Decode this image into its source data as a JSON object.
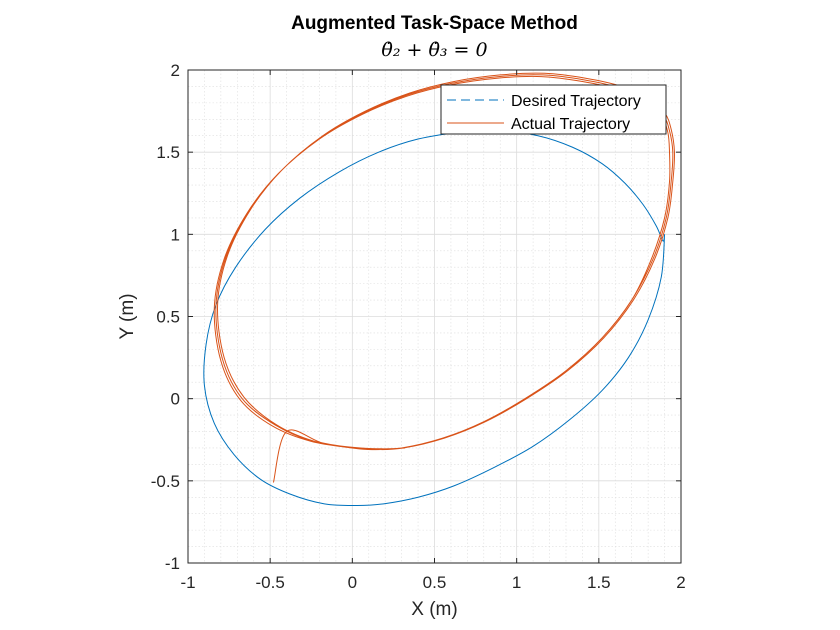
{
  "chart_data": {
    "type": "line",
    "title": "Augmented Task-Space Method",
    "subtitle": "θ̇₂ + θ̇₃ = 0",
    "xlabel": "X (m)",
    "ylabel": "Y (m)",
    "xlim": [
      -1,
      2
    ],
    "ylim": [
      -1,
      2
    ],
    "xticks": [
      -1,
      -0.5,
      0,
      0.5,
      1,
      1.5,
      2
    ],
    "yticks": [
      -1,
      -0.5,
      0,
      0.5,
      1,
      1.5,
      2
    ],
    "xtick_labels": [
      "-1",
      "-0.5",
      "0",
      "0.5",
      "1",
      "1.5",
      "2"
    ],
    "ytick_labels": [
      "-1",
      "-0.5",
      "0",
      "0.5",
      "1",
      "1.5",
      "2"
    ],
    "grid": true,
    "minor_grid": true,
    "legend_position": "top-right",
    "series": [
      {
        "name": "Desired Trajectory",
        "style": "dashed",
        "color": "#0072BD",
        "x": [
          1.9,
          1.88,
          1.8,
          1.68,
          1.52,
          1.32,
          1.1,
          0.86,
          0.62,
          0.4,
          0.19,
          0.03,
          -0.17,
          -0.38,
          -0.56,
          -0.72,
          -0.84,
          -0.9,
          -0.89,
          -0.83,
          -0.71,
          -0.53,
          -0.32,
          -0.08,
          0.16,
          0.4,
          0.65,
          0.9,
          1.13,
          1.34,
          1.52,
          1.66,
          1.77,
          1.85,
          1.89,
          1.9
        ],
        "y": [
          1.0,
          0.74,
          0.48,
          0.25,
          0.05,
          -0.13,
          -0.29,
          -0.42,
          -0.53,
          -0.6,
          -0.64,
          -0.65,
          -0.64,
          -0.58,
          -0.49,
          -0.34,
          -0.15,
          0.08,
          0.33,
          0.57,
          0.8,
          1.03,
          1.22,
          1.38,
          1.5,
          1.58,
          1.62,
          1.63,
          1.6,
          1.53,
          1.43,
          1.31,
          1.18,
          1.05,
          0.96,
          1.0
        ]
      },
      {
        "name": "Actual Trajectory",
        "style": "solid",
        "color": "#D95319",
        "x": [
          -0.48,
          -0.4,
          -0.18,
          0.05,
          0.3,
          0.55,
          0.8,
          1.05,
          1.3,
          1.52,
          1.7,
          1.82,
          1.9,
          1.93,
          1.93,
          1.92,
          1.88,
          1.78,
          1.62,
          1.4,
          1.15,
          0.88,
          0.6,
          0.33,
          0.06,
          -0.2,
          -0.45,
          -0.64,
          -0.78,
          -0.84,
          -0.8,
          -0.68,
          -0.48,
          -0.25,
          0.0,
          0.12,
          0.3,
          0.55,
          0.8,
          1.05,
          1.3,
          1.52,
          1.7,
          1.83,
          1.91,
          1.94,
          1.95,
          1.93,
          1.89,
          1.79,
          1.63,
          1.41,
          1.16,
          0.89,
          0.61,
          0.34,
          0.07,
          -0.19,
          -0.44,
          -0.63,
          -0.77,
          -0.83,
          -0.79,
          -0.67,
          -0.47,
          -0.24,
          0.0,
          0.13,
          0.31,
          0.56,
          0.81,
          1.06,
          1.31,
          1.53,
          1.71,
          1.84,
          1.92,
          1.95,
          1.96,
          1.94,
          1.9,
          1.8,
          1.64,
          1.42,
          1.17,
          0.9,
          0.62,
          0.35,
          0.08,
          -0.18,
          -0.43,
          -0.62,
          -0.76,
          -0.82,
          -0.78,
          -0.66,
          -0.46,
          -0.23,
          0.0,
          0.14,
          0.32
        ],
        "y": [
          -0.51,
          -0.2,
          -0.27,
          -0.3,
          -0.3,
          -0.24,
          -0.14,
          0.0,
          0.17,
          0.37,
          0.6,
          0.85,
          1.1,
          1.32,
          1.5,
          1.62,
          1.72,
          1.81,
          1.88,
          1.93,
          1.96,
          1.95,
          1.91,
          1.84,
          1.73,
          1.58,
          1.37,
          1.13,
          0.85,
          0.55,
          0.23,
          -0.01,
          -0.17,
          -0.26,
          -0.3,
          -0.31,
          -0.3,
          -0.24,
          -0.14,
          0.0,
          0.17,
          0.37,
          0.6,
          0.85,
          1.1,
          1.32,
          1.5,
          1.63,
          1.73,
          1.82,
          1.89,
          1.94,
          1.97,
          1.96,
          1.92,
          1.85,
          1.74,
          1.59,
          1.38,
          1.14,
          0.86,
          0.56,
          0.24,
          0.0,
          -0.16,
          -0.26,
          -0.3,
          -0.31,
          -0.3,
          -0.24,
          -0.14,
          0.0,
          0.17,
          0.37,
          0.6,
          0.85,
          1.1,
          1.32,
          1.5,
          1.64,
          1.74,
          1.83,
          1.9,
          1.95,
          1.98,
          1.97,
          1.93,
          1.86,
          1.75,
          1.6,
          1.39,
          1.15,
          0.87,
          0.57,
          0.25,
          0.01,
          -0.16,
          -0.26,
          -0.3,
          -0.31,
          -0.3
        ]
      }
    ]
  }
}
